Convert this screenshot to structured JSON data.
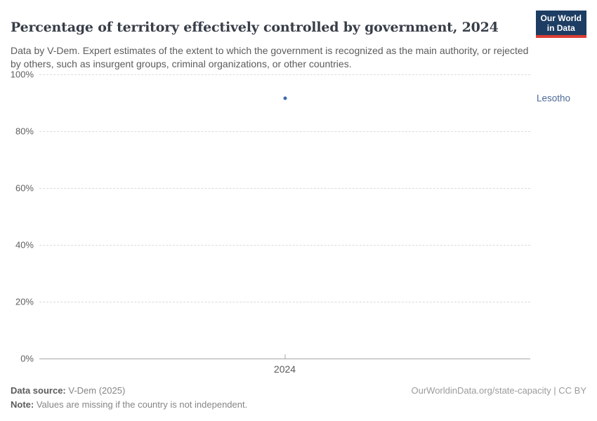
{
  "header": {
    "title": "Percentage of territory effectively controlled by government, 2024",
    "subtitle": "Data by V-Dem. Expert estimates of the extent to which the government is recognized as the main authority, or rejected by others, such as insurgent groups, criminal organizations, or other countries.",
    "logo": {
      "line1": "Our World",
      "line2": "in Data",
      "background_color": "#1D3D63",
      "accent_color": "#DC3D33"
    }
  },
  "chart_data": {
    "type": "scatter",
    "title": "Percentage of territory effectively controlled by government, 2024",
    "series": [
      {
        "name": "Lesotho",
        "points": [
          {
            "x": 2024,
            "y": 91.6
          }
        ]
      }
    ],
    "xticks": [
      "2024"
    ],
    "yticks": [
      0,
      20,
      40,
      60,
      80,
      100
    ],
    "ytick_suffix": "%",
    "ylim": [
      0,
      100
    ],
    "grid": "horizontal-dashed",
    "legend_position": "entity-label-right",
    "colors": {
      "point": "#3C6BA8",
      "entity_label": "#4D6A99",
      "gridline": "#DBDBDB",
      "axis_line": "#A7A7A7",
      "tick_text": "#5F5F5F"
    }
  },
  "footer": {
    "data_source_label": "Data source:",
    "data_source_value": " V-Dem (2025)",
    "note_label": "Note:",
    "note_value": " Values are missing if the country is not independent.",
    "link": "OurWorldinData.org/state-capacity | CC BY"
  }
}
